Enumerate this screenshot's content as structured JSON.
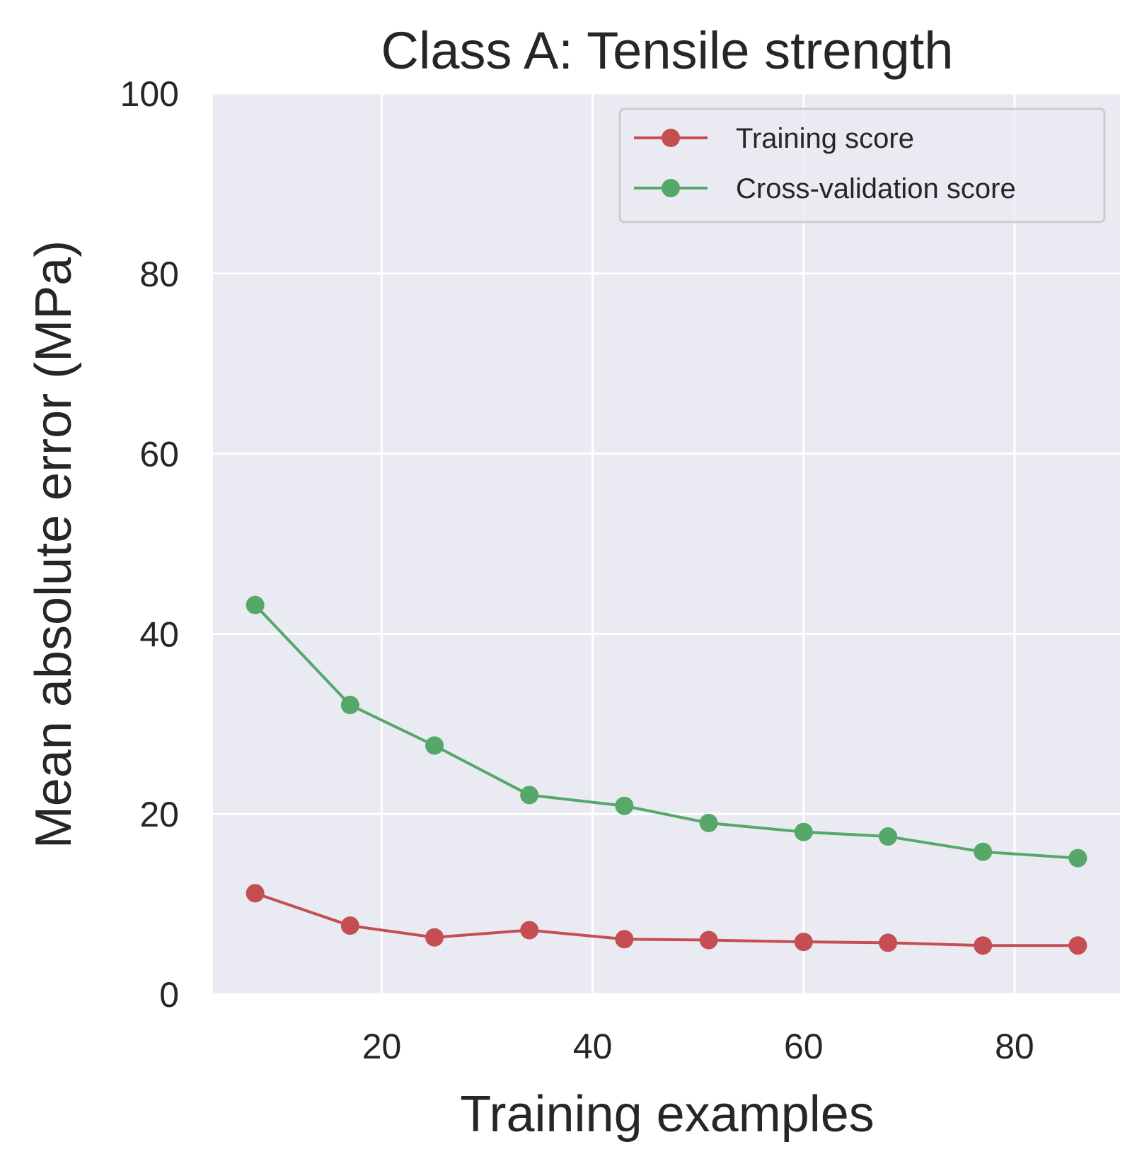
{
  "chart_data": {
    "type": "line",
    "title": "Class A: Tensile strength",
    "xlabel": "Training examples",
    "ylabel": "Mean absolute error (MPa)",
    "xlim": [
      4,
      90
    ],
    "ylim": [
      0,
      100
    ],
    "xticks": [
      20,
      40,
      60,
      80
    ],
    "yticks": [
      0,
      20,
      40,
      60,
      80,
      100
    ],
    "grid": true,
    "legend_position": "top-right",
    "x": [
      8,
      17,
      25,
      34,
      43,
      51,
      60,
      68,
      77,
      86
    ],
    "series": [
      {
        "name": "Training score",
        "color": "#c44e52",
        "marker": "circle",
        "values": [
          11.2,
          7.6,
          6.3,
          7.1,
          6.1,
          6.0,
          5.8,
          5.7,
          5.4,
          5.4
        ]
      },
      {
        "name": "Cross-validation score",
        "color": "#55a868",
        "marker": "circle",
        "values": [
          43.2,
          32.1,
          27.6,
          22.1,
          20.9,
          19.0,
          18.0,
          17.5,
          15.8,
          15.1
        ]
      }
    ],
    "plot_background": "#eaeaf2",
    "grid_color": "#ffffff"
  }
}
